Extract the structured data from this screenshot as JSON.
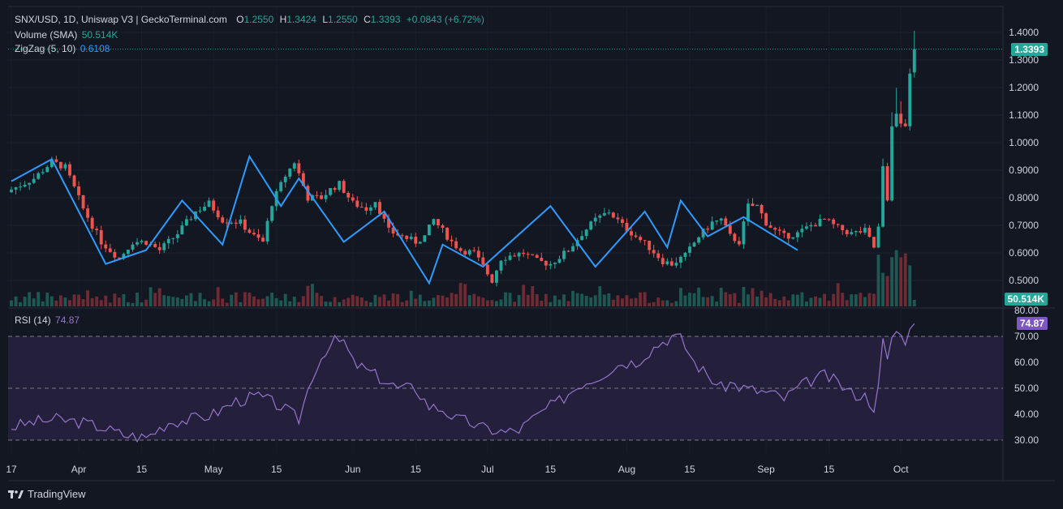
{
  "header": {
    "symbol": "SNX/USD, 1D, Uniswap V3 | GeckoTerminal.com",
    "o_label": "O",
    "o": "1.2550",
    "h_label": "H",
    "h": "1.3424",
    "l_label": "L",
    "l": "1.2550",
    "c_label": "C",
    "c": "1.3393",
    "change": "+0.0843 (+6.72%)",
    "volume_label": "Volume (SMA)",
    "volume_value": "50.514K",
    "zigzag_label": "ZigZag (5, 10)",
    "zigzag_value": "0.6108",
    "rsi_label": "RSI (14)",
    "rsi_value": "74.87"
  },
  "badges": {
    "price": "1.3393",
    "volume": "50.514K",
    "rsi": "74.87"
  },
  "brand": {
    "name": "TradingView"
  },
  "colors": {
    "bg": "#131722",
    "up": "#26a69a",
    "down": "#ef5350",
    "zigzag": "#2e9bff",
    "rsi": "#9575cd",
    "rsi_band": "#241f3a"
  },
  "chart_data": [
    {
      "type": "candlestick",
      "title": "SNX/USD, 1D, Uniswap V3",
      "ylim": [
        0.44,
        1.42
      ],
      "y_ticks": [
        "1.4000",
        "1.3000",
        "1.2000",
        "1.1000",
        "1.0000",
        "0.9000",
        "0.8000",
        "0.7000",
        "0.6000",
        "0.5000"
      ],
      "x_ticks": [
        "17",
        "Apr",
        "15",
        "May",
        "15",
        "Jun",
        "15",
        "Jul",
        "15",
        "Aug",
        "15",
        "Sep",
        "15",
        "Oct"
      ],
      "x_tick_days": [
        0,
        15,
        29,
        45,
        59,
        76,
        90,
        106,
        120,
        137,
        151,
        168,
        182,
        198
      ],
      "start_date": "Mar 17",
      "last_close": 1.3393,
      "close_path": [
        [
          0,
          0.83
        ],
        [
          5,
          0.87
        ],
        [
          9,
          0.93
        ],
        [
          12,
          0.91
        ],
        [
          16,
          0.76
        ],
        [
          20,
          0.64
        ],
        [
          24,
          0.58
        ],
        [
          27,
          0.64
        ],
        [
          30,
          0.64
        ],
        [
          33,
          0.61
        ],
        [
          37,
          0.67
        ],
        [
          41,
          0.75
        ],
        [
          44,
          0.78
        ],
        [
          47,
          0.72
        ],
        [
          51,
          0.71
        ],
        [
          54,
          0.66
        ],
        [
          56,
          0.64
        ],
        [
          58,
          0.78
        ],
        [
          61,
          0.88
        ],
        [
          63,
          0.93
        ],
        [
          66,
          0.8
        ],
        [
          69,
          0.8
        ],
        [
          71,
          0.83
        ],
        [
          73,
          0.85
        ],
        [
          76,
          0.78
        ],
        [
          79,
          0.76
        ],
        [
          81,
          0.79
        ],
        [
          84,
          0.68
        ],
        [
          87,
          0.66
        ],
        [
          90,
          0.64
        ],
        [
          92,
          0.66
        ],
        [
          94,
          0.72
        ],
        [
          96,
          0.68
        ],
        [
          98,
          0.64
        ],
        [
          100,
          0.61
        ],
        [
          103,
          0.6
        ],
        [
          105,
          0.55
        ],
        [
          107,
          0.5
        ],
        [
          109,
          0.58
        ],
        [
          111,
          0.59
        ],
        [
          114,
          0.6
        ],
        [
          117,
          0.57
        ],
        [
          120,
          0.56
        ],
        [
          124,
          0.61
        ],
        [
          127,
          0.67
        ],
        [
          130,
          0.72
        ],
        [
          133,
          0.75
        ],
        [
          136,
          0.7
        ],
        [
          139,
          0.66
        ],
        [
          142,
          0.62
        ],
        [
          145,
          0.57
        ],
        [
          147,
          0.56
        ],
        [
          150,
          0.59
        ],
        [
          153,
          0.66
        ],
        [
          156,
          0.71
        ],
        [
          158,
          0.72
        ],
        [
          160,
          0.66
        ],
        [
          162,
          0.64
        ],
        [
          164,
          0.77
        ],
        [
          166,
          0.77
        ],
        [
          168,
          0.71
        ],
        [
          170,
          0.68
        ],
        [
          172,
          0.66
        ],
        [
          175,
          0.67
        ],
        [
          178,
          0.7
        ],
        [
          181,
          0.72
        ],
        [
          184,
          0.69
        ],
        [
          187,
          0.67
        ],
        [
          190,
          0.68
        ],
        [
          192,
          0.62
        ],
        [
          193,
          0.69
        ],
        [
          194,
          0.92
        ],
        [
          195,
          0.8
        ],
        [
          196,
          1.05
        ],
        [
          197,
          1.1
        ],
        [
          198,
          1.07
        ],
        [
          199,
          1.06
        ],
        [
          200,
          1.26
        ],
        [
          201,
          1.34
        ]
      ],
      "zigzag": [
        [
          0,
          0.86
        ],
        [
          9,
          0.94
        ],
        [
          21,
          0.56
        ],
        [
          30,
          0.61
        ],
        [
          38,
          0.79
        ],
        [
          47,
          0.63
        ],
        [
          53,
          0.95
        ],
        [
          60,
          0.77
        ],
        [
          64,
          0.87
        ],
        [
          74,
          0.64
        ],
        [
          83,
          0.75
        ],
        [
          93,
          0.49
        ],
        [
          96,
          0.63
        ],
        [
          105,
          0.55
        ],
        [
          120,
          0.77
        ],
        [
          130,
          0.55
        ],
        [
          141,
          0.75
        ],
        [
          146,
          0.62
        ],
        [
          149,
          0.79
        ],
        [
          155,
          0.66
        ],
        [
          163,
          0.73
        ],
        [
          175,
          0.61
        ]
      ]
    },
    {
      "type": "bar",
      "title": "Volume (SMA)",
      "last_value": "50.514K"
    },
    {
      "type": "line",
      "title": "RSI (14)",
      "ylim": [
        26,
        80
      ],
      "y_ticks": [
        "80.00",
        "70.00",
        "60.00",
        "50.00",
        "40.00",
        "30.00"
      ],
      "bands": [
        30,
        50,
        70
      ],
      "last_value": 74.87,
      "points": [
        [
          0,
          35
        ],
        [
          5,
          37
        ],
        [
          10,
          38
        ],
        [
          15,
          37
        ],
        [
          20,
          35
        ],
        [
          25,
          32
        ],
        [
          30,
          31
        ],
        [
          35,
          37
        ],
        [
          40,
          38
        ],
        [
          45,
          40
        ],
        [
          50,
          45
        ],
        [
          55,
          47
        ],
        [
          60,
          43
        ],
        [
          64,
          38
        ],
        [
          67,
          55
        ],
        [
          70,
          65
        ],
        [
          72,
          68
        ],
        [
          74,
          68
        ],
        [
          76,
          60
        ],
        [
          79,
          57
        ],
        [
          83,
          53
        ],
        [
          86,
          50
        ],
        [
          90,
          50
        ],
        [
          93,
          43
        ],
        [
          96,
          42
        ],
        [
          99,
          38
        ],
        [
          102,
          37
        ],
        [
          104,
          35
        ],
        [
          107,
          34
        ],
        [
          110,
          33
        ],
        [
          113,
          34
        ],
        [
          116,
          38
        ],
        [
          119,
          42
        ],
        [
          122,
          45
        ],
        [
          124,
          48
        ],
        [
          127,
          52
        ],
        [
          130,
          54
        ],
        [
          133,
          57
        ],
        [
          136,
          60
        ],
        [
          139,
          60
        ],
        [
          141,
          63
        ],
        [
          144,
          67
        ],
        [
          147,
          70
        ],
        [
          149,
          69
        ],
        [
          152,
          60
        ],
        [
          155,
          55
        ],
        [
          158,
          50
        ],
        [
          160,
          52
        ],
        [
          163,
          50
        ],
        [
          166,
          49
        ],
        [
          169,
          48
        ],
        [
          172,
          46
        ],
        [
          175,
          50
        ],
        [
          178,
          53
        ],
        [
          181,
          55
        ],
        [
          184,
          52
        ],
        [
          187,
          48
        ],
        [
          190,
          47
        ],
        [
          192,
          43
        ],
        [
          193,
          50
        ],
        [
          194,
          68
        ],
        [
          195,
          60
        ],
        [
          196,
          70
        ],
        [
          197,
          72
        ],
        [
          198,
          70
        ],
        [
          199,
          69
        ],
        [
          200,
          72
        ],
        [
          201,
          74.87
        ]
      ]
    }
  ]
}
